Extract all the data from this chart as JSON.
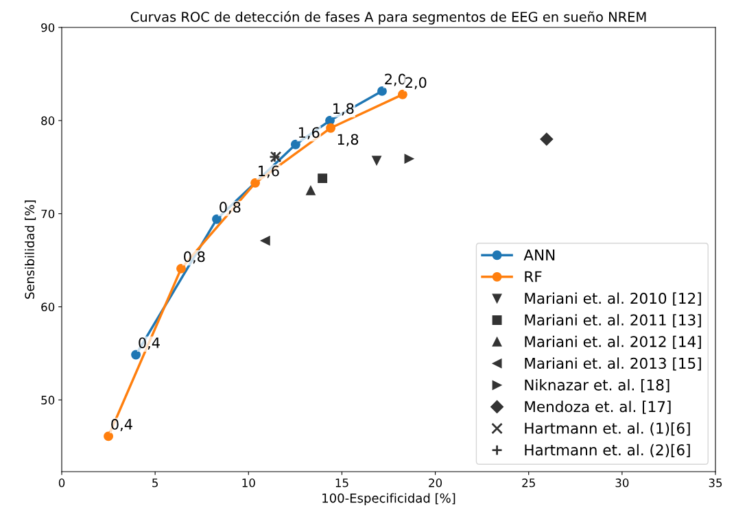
{
  "chart_data": {
    "type": "line",
    "title": "Curvas ROC de detección de fases A para segmentos de EEG en sueño NREM",
    "xlabel": "100-Especificidad [%]",
    "ylabel": "Sensibilidad [%]",
    "annotations": [
      {
        "text": "0,4",
        "x": 3.97,
        "y": 54.85
      },
      {
        "text": "0,8",
        "x": 8.3,
        "y": 69.41
      },
      {
        "text": "1,6",
        "x": 12.52,
        "y": 77.43
      },
      {
        "text": "1,8",
        "x": 14.36,
        "y": 80.0
      },
      {
        "text": "2,0",
        "x": 17.15,
        "y": 83.16
      },
      {
        "text": "0,4",
        "x": 2.5,
        "y": 46.1
      },
      {
        "text": "0,8",
        "x": 6.39,
        "y": 64.1
      },
      {
        "text": "1,6",
        "x": 10.36,
        "y": 73.3
      },
      {
        "text": "1,8",
        "x": 14.4,
        "y": 79.2
      },
      {
        "text": "2,0",
        "x": 18.25,
        "y": 82.8
      }
    ],
    "xlim": [
      0,
      35
    ],
    "xticks": [
      0,
      5,
      10,
      15,
      20,
      25,
      30,
      35
    ],
    "ylim": [
      42.3,
      90
    ],
    "yticks": [
      50,
      60,
      70,
      80,
      90
    ],
    "grid": false,
    "legend": "bottom right",
    "series": [
      {
        "name": "ANN",
        "color": "#1f77b4",
        "marker": "circle",
        "x": [
          3.97,
          8.3,
          12.52,
          14.36,
          17.15
        ],
        "values": [
          54.85,
          69.41,
          77.43,
          80.0,
          83.16
        ]
      },
      {
        "name": "RF",
        "color": "#ff7f0e",
        "marker": "circle",
        "x": [
          2.5,
          6.39,
          10.36,
          14.4,
          18.25
        ],
        "values": [
          46.1,
          64.1,
          73.3,
          79.2,
          82.8
        ]
      },
      {
        "name": "Mariani et. al. 2010 [12]",
        "type": "scatter",
        "color": "#333333",
        "marker": "triangle_down",
        "x": [
          16.86
        ],
        "values": [
          75.7
        ]
      },
      {
        "name": "Mariani et. al. 2011 [13]",
        "type": "scatter",
        "color": "#333333",
        "marker": "square",
        "x": [
          13.96
        ],
        "values": [
          73.8
        ]
      },
      {
        "name": "Mariani et. al. 2012 [14]",
        "type": "scatter",
        "color": "#333333",
        "marker": "triangle",
        "x": [
          13.33
        ],
        "values": [
          72.5
        ]
      },
      {
        "name": "Mariani et. al. 2013 [15]",
        "type": "scatter",
        "color": "#333333",
        "marker": "triangle_left",
        "x": [
          10.9
        ],
        "values": [
          67.1
        ]
      },
      {
        "name": "Niknazar et. al. [18]",
        "type": "scatter",
        "color": "#333333",
        "marker": "triangle_right",
        "x": [
          18.6
        ],
        "values": [
          75.9
        ]
      },
      {
        "name": "Mendoza et. al. [17]",
        "type": "scatter",
        "color": "#333333",
        "marker": "diamond",
        "x": [
          25.96
        ],
        "values": [
          78.0
        ]
      },
      {
        "name": "Hartmann et. al. (1)[6]",
        "type": "scatter",
        "color": "#333333",
        "marker": "cross",
        "x": [
          11.46
        ],
        "values": [
          76.1
        ]
      },
      {
        "name": "Hartmann et. al. (2)[6]",
        "type": "scatter",
        "color": "#333333",
        "marker": "plus",
        "x": [
          11.4
        ],
        "values": [
          76.1
        ]
      }
    ]
  }
}
